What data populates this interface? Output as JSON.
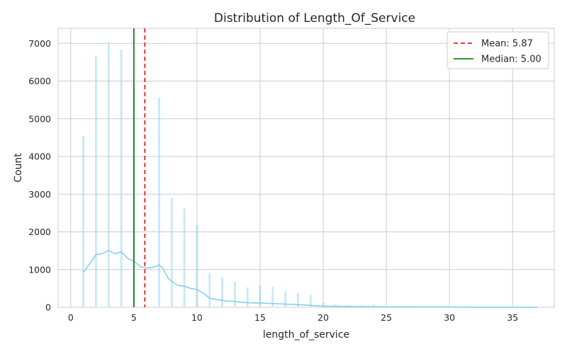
{
  "chart_data": {
    "type": "histogram",
    "title": "Distribution of Length_Of_Service",
    "xlabel": "length_of_service",
    "ylabel": "Count",
    "xlim": [
      -1,
      38.3
    ],
    "ylim": [
      0,
      7400
    ],
    "xticks": [
      0,
      5,
      10,
      15,
      20,
      25,
      30,
      35
    ],
    "yticks": [
      0,
      1000,
      2000,
      3000,
      4000,
      5000,
      6000,
      7000
    ],
    "grid": true,
    "bar_color": "#87ceeb",
    "kde_color": "#87ceeb",
    "bars": {
      "x": [
        1,
        2,
        3,
        4,
        5,
        6,
        7,
        8,
        9,
        10,
        11,
        12,
        13,
        14,
        15,
        16,
        17,
        18,
        19,
        20,
        21,
        22,
        23,
        24,
        25,
        26,
        27,
        28,
        29,
        30,
        31,
        32,
        33,
        34,
        35,
        36,
        37
      ],
      "counts": [
        4550,
        6680,
        7040,
        6830,
        5850,
        0,
        5560,
        2900,
        2630,
        2190,
        920,
        800,
        690,
        530,
        580,
        540,
        430,
        390,
        330,
        120,
        80,
        60,
        50,
        70,
        30,
        20,
        15,
        12,
        8,
        6,
        5,
        4,
        3,
        2,
        2,
        1,
        1
      ]
    },
    "kde": {
      "x": [
        1,
        1.5,
        2,
        2.5,
        3,
        3.5,
        4,
        4.5,
        5,
        5.5,
        6,
        6.5,
        7,
        7.3,
        7.7,
        8,
        8.5,
        9,
        9.5,
        10,
        10.5,
        11,
        12,
        13,
        14,
        15,
        16,
        17,
        18,
        19,
        20,
        22,
        25,
        28,
        32,
        37
      ],
      "y": [
        930,
        1150,
        1400,
        1420,
        1510,
        1420,
        1470,
        1300,
        1220,
        1080,
        1040,
        1060,
        1120,
        1040,
        780,
        680,
        580,
        560,
        500,
        470,
        380,
        240,
        180,
        150,
        120,
        115,
        100,
        85,
        70,
        50,
        30,
        20,
        12,
        8,
        4,
        2
      ]
    },
    "reference_lines": [
      {
        "name": "Mean: 5.87",
        "x": 5.87,
        "color": "#e02020",
        "style": "dashed"
      },
      {
        "name": "Median: 5.00",
        "x": 5.0,
        "color": "#128012",
        "style": "solid"
      }
    ],
    "legend_position": "top-right"
  }
}
